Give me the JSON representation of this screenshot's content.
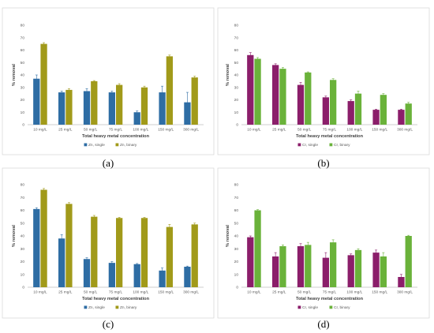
{
  "chart_data": [
    {
      "type": "bar",
      "caption": "(a)",
      "categories": [
        "10 mg/L",
        "25 mg/L",
        "50 mg/L",
        "75 mg/L",
        "100 mg/L",
        "150 mg/L",
        "300 mg/L"
      ],
      "xlabel": "Total heavy metal concentration",
      "ylabel": "% removal",
      "ylim": [
        0,
        80
      ],
      "yticks": [
        0,
        10,
        20,
        30,
        40,
        50,
        60,
        70,
        80
      ],
      "grid": false,
      "legend": "bottom",
      "series": [
        {
          "name": "Zn, single",
          "color": "#2e6da4",
          "values": [
            37,
            26,
            27,
            26,
            10,
            26,
            18
          ],
          "errors": [
            3,
            1,
            2,
            1,
            1,
            5,
            8
          ]
        },
        {
          "name": "Zn, binary",
          "color": "#a19a1a",
          "values": [
            65,
            28,
            35,
            32,
            30,
            55,
            38
          ],
          "errors": [
            1,
            1,
            0.5,
            1,
            1,
            1,
            1
          ]
        }
      ]
    },
    {
      "type": "bar",
      "caption": "(b)",
      "categories": [
        "10 mg/L",
        "25 mg/L",
        "50 mg/L",
        "75 mg/L",
        "100 mg/L",
        "150 mg/L",
        "300 mg/L"
      ],
      "xlabel": "Total heavy metal concentration",
      "ylabel": "% removal",
      "ylim": [
        0,
        80
      ],
      "yticks": [
        0,
        10,
        20,
        30,
        40,
        50,
        60,
        70,
        80
      ],
      "grid": false,
      "legend": "bottom",
      "series": [
        {
          "name": "Cr, single",
          "color": "#8b1e6a",
          "values": [
            56,
            48,
            32,
            22,
            19,
            12,
            12
          ],
          "errors": [
            2,
            1,
            2,
            1,
            1,
            0.5,
            0.5
          ]
        },
        {
          "name": "Cr, binary",
          "color": "#6ab23a",
          "values": [
            53,
            45,
            42,
            36,
            25,
            24,
            17
          ],
          "errors": [
            1,
            1,
            0.5,
            1,
            2,
            1,
            1
          ]
        }
      ]
    },
    {
      "type": "bar",
      "caption": "(c)",
      "categories": [
        "10 mg/L",
        "25 mg/L",
        "50 mg/L",
        "75 mg/L",
        "100 mg/L",
        "150 mg/L",
        "300 mg/L"
      ],
      "xlabel": "Total heavy metal concentration",
      "ylabel": "% removal",
      "ylim": [
        0,
        80
      ],
      "yticks": [
        0,
        10,
        20,
        30,
        40,
        50,
        60,
        70,
        80
      ],
      "grid": false,
      "legend": "bottom",
      "series": [
        {
          "name": "Zn, single",
          "color": "#2e6da4",
          "values": [
            61,
            38,
            22,
            19,
            18,
            13,
            16
          ],
          "errors": [
            1,
            3,
            1,
            1,
            0.5,
            2,
            0.5
          ]
        },
        {
          "name": "Zn, binary",
          "color": "#a19a1a",
          "values": [
            76,
            65,
            55,
            54,
            54,
            47,
            49
          ],
          "errors": [
            1,
            1,
            1,
            0.5,
            0.5,
            2,
            1
          ]
        }
      ]
    },
    {
      "type": "bar",
      "caption": "(d)",
      "categories": [
        "10 mg/L",
        "25 mg/L",
        "50 mg/L",
        "75 mg/L",
        "100 mg/L",
        "150 mg/L",
        "300 mg/L"
      ],
      "xlabel": "Total heavy metal concentration",
      "ylabel": "% removal",
      "ylim": [
        0,
        80
      ],
      "yticks": [
        0,
        10,
        20,
        30,
        40,
        50,
        60,
        70,
        80
      ],
      "grid": false,
      "legend": "bottom",
      "series": [
        {
          "name": "Cr, single",
          "color": "#8b1e6a",
          "values": [
            39,
            24,
            32,
            23,
            25,
            27,
            8
          ],
          "errors": [
            1,
            3,
            2,
            4,
            1,
            2,
            2
          ]
        },
        {
          "name": "Cr, binary",
          "color": "#6ab23a",
          "values": [
            60,
            32,
            33,
            35,
            29,
            24,
            40
          ],
          "errors": [
            0.5,
            1,
            2,
            2,
            1,
            3,
            0.5
          ]
        }
      ]
    }
  ]
}
